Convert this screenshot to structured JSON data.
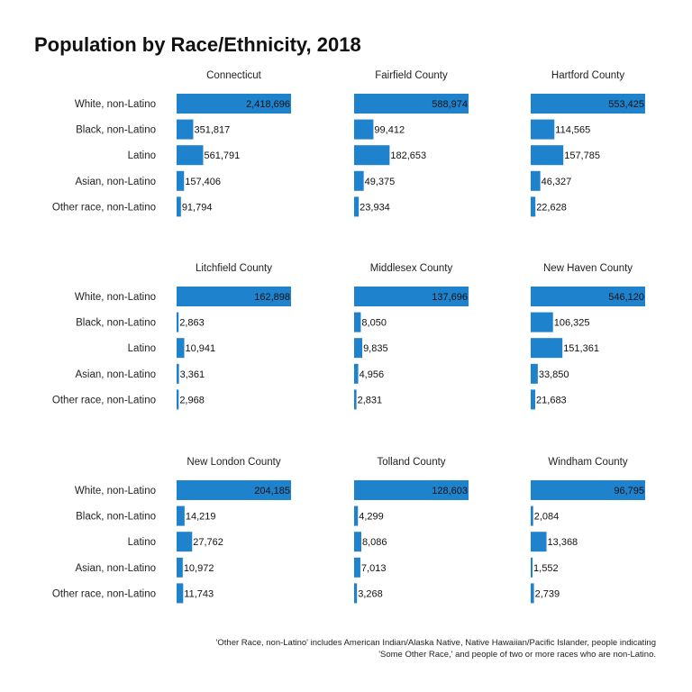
{
  "colors": {
    "bar": "#1f82cc",
    "text": "#111111",
    "background": "#ffffff"
  },
  "chart_data": {
    "type": "bar",
    "orientation": "horizontal",
    "title": "Population by Race/Ethnicity, 2018",
    "categories": [
      "White, non-Latino",
      "Black, non-Latino",
      "Latino",
      "Asian, non-Latino",
      "Other race, non-Latino"
    ],
    "scale": "per-panel (each panel scaled to its own maximum)",
    "grid": false,
    "panels": [
      {
        "title": "Connecticut",
        "values": [
          2418696,
          351817,
          561791,
          157406,
          91794
        ]
      },
      {
        "title": "Fairfield County",
        "values": [
          588974,
          99412,
          182653,
          49375,
          23934
        ]
      },
      {
        "title": "Hartford County",
        "values": [
          553425,
          114565,
          157785,
          46327,
          22628
        ]
      },
      {
        "title": "Litchfield County",
        "values": [
          162898,
          2863,
          10941,
          3361,
          2968
        ]
      },
      {
        "title": "Middlesex County",
        "values": [
          137696,
          8050,
          9835,
          4956,
          2831
        ]
      },
      {
        "title": "New Haven County",
        "values": [
          546120,
          106325,
          151361,
          33850,
          21683
        ]
      },
      {
        "title": "New London County",
        "values": [
          204185,
          14219,
          27762,
          10972,
          11743
        ]
      },
      {
        "title": "Tolland County",
        "values": [
          128603,
          4299,
          8086,
          7013,
          3268
        ]
      },
      {
        "title": "Windham County",
        "values": [
          96795,
          2084,
          13368,
          1552,
          2739
        ]
      }
    ],
    "footnote_lines": [
      "'Other Race, non-Latino' includes American Indian/Alaska Native, Native Hawaiian/Pacific Islander, people indicating",
      "'Some Other Race,' and people of two or more races who are non-Latino."
    ]
  }
}
